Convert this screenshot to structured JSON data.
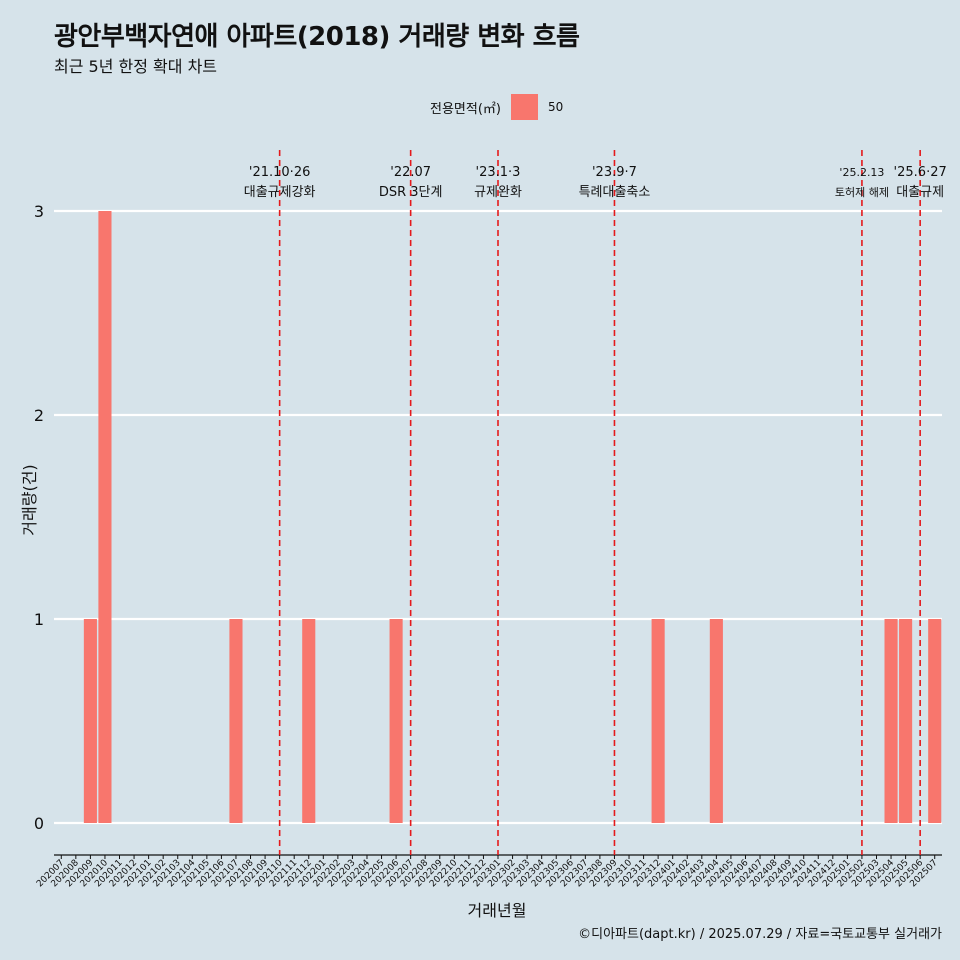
{
  "title": "광안부백자연애 아파트(2018) 거래량 변화 흐름",
  "subtitle": "최근 5년 한정 확대 차트",
  "legend": {
    "title": "전용면적(㎡)",
    "item": "50"
  },
  "caption": "©디아파트(dapt.kr) / 2025.07.29 / 자료=국토교통부 실거래가",
  "colors": {
    "background": "#d6e3ea",
    "bar": "#f8766d",
    "event_line": "#e41a1c",
    "grid": "#ffffff"
  },
  "chart_data": {
    "type": "bar",
    "title": "광안부백자연애 아파트(2018) 거래량 변화 흐름",
    "xlabel": "거래년월",
    "ylabel": "거래량(건)",
    "ylim": [
      0,
      3
    ],
    "yticks": [
      0,
      1,
      2,
      3
    ],
    "grid": "horizontal",
    "legend_position": "top",
    "categories": [
      "202007",
      "202008",
      "202009",
      "202010",
      "202011",
      "202012",
      "202101",
      "202102",
      "202103",
      "202104",
      "202105",
      "202106",
      "202107",
      "202108",
      "202109",
      "202110",
      "202111",
      "202112",
      "202201",
      "202202",
      "202203",
      "202204",
      "202205",
      "202206",
      "202207",
      "202208",
      "202209",
      "202210",
      "202211",
      "202212",
      "202301",
      "202302",
      "202303",
      "202304",
      "202305",
      "202306",
      "202307",
      "202308",
      "202309",
      "202310",
      "202311",
      "202312",
      "202401",
      "202402",
      "202403",
      "202404",
      "202405",
      "202406",
      "202407",
      "202408",
      "202409",
      "202410",
      "202411",
      "202412",
      "202501",
      "202502",
      "202503",
      "202504",
      "202505",
      "202506",
      "202507"
    ],
    "series": [
      {
        "name": "50",
        "values": [
          0,
          0,
          1,
          3,
          0,
          0,
          0,
          0,
          0,
          0,
          0,
          0,
          1,
          0,
          0,
          0,
          0,
          1,
          0,
          0,
          0,
          0,
          0,
          1,
          0,
          0,
          0,
          0,
          0,
          0,
          0,
          0,
          0,
          0,
          0,
          0,
          0,
          0,
          0,
          0,
          0,
          1,
          0,
          0,
          0,
          1,
          0,
          0,
          0,
          0,
          0,
          0,
          0,
          0,
          0,
          0,
          0,
          1,
          1,
          0,
          1
        ]
      }
    ],
    "events": [
      {
        "x": "202110",
        "date": "'21.10·26",
        "label": "대출규제강화"
      },
      {
        "x": "202207",
        "date": "'22.07",
        "label": "DSR 3단계"
      },
      {
        "x": "202301",
        "date": "'23.1·3",
        "label": "규제완화"
      },
      {
        "x": "202309",
        "date": "'23.9·7",
        "label": "특례대출축소"
      },
      {
        "x": "202502",
        "date": "'25.2.13",
        "label": "토허제 해제"
      },
      {
        "x": "202506",
        "date": "'25.6·27",
        "label": "대출규제"
      }
    ]
  }
}
